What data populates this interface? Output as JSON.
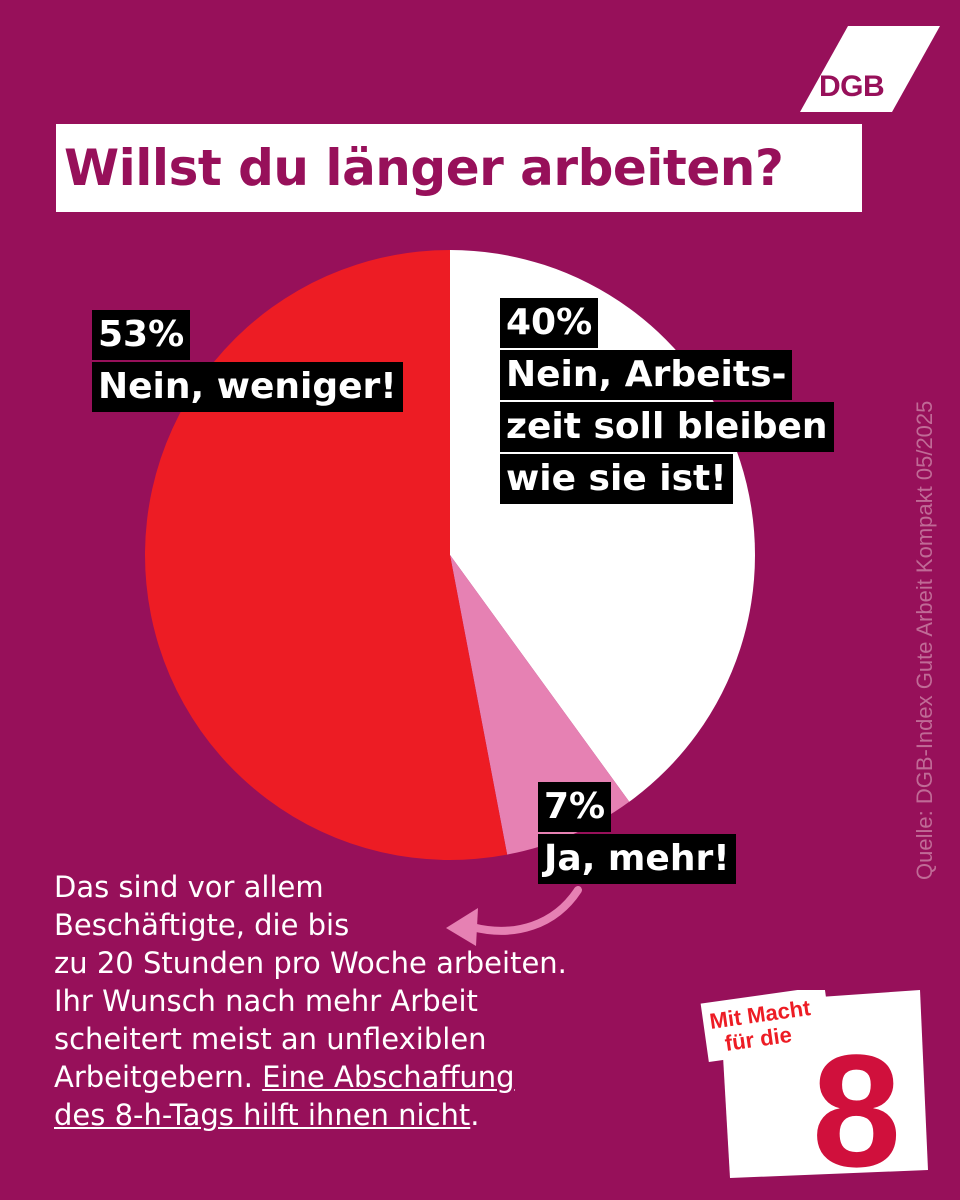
{
  "brand": {
    "logo_text": "DGB"
  },
  "title": "Willst du länger arbeiten?",
  "chart_data": {
    "type": "pie",
    "slices": [
      {
        "label_lines": [
          "40%",
          "Nein, Arbeits-",
          "zeit soll bleiben",
          "wie sie ist!"
        ],
        "value": 40,
        "color": "#ffffff"
      },
      {
        "label_lines": [
          "7%",
          "Ja, mehr!"
        ],
        "value": 7,
        "color": "#e681b3"
      },
      {
        "label_lines": [
          "53%",
          "Nein, weniger!"
        ],
        "value": 53,
        "color": "#ed1c24"
      }
    ]
  },
  "source": "Quelle: DGB-Index Gute Arbeit Kompakt 05/2025",
  "body": {
    "lines": [
      "Das sind vor allem",
      "Beschäftigte, die bis",
      "zu 20 Stunden pro Woche arbeiten.",
      "Ihr Wunsch nach mehr Arbeit",
      "scheitert meist an unflexiblen"
    ],
    "line6_plain": "Arbeitgebern. ",
    "line6_underlined": "Eine Abschaffung",
    "line7_underlined": "des 8-h-Tags hilft ihnen nicht",
    "line7_end": "."
  },
  "badge": {
    "line1": "Mit Macht",
    "line2": "für die",
    "number": "8"
  },
  "colors": {
    "background": "#97105a",
    "red": "#ed1c24",
    "pink": "#e681b3",
    "white": "#ffffff"
  }
}
